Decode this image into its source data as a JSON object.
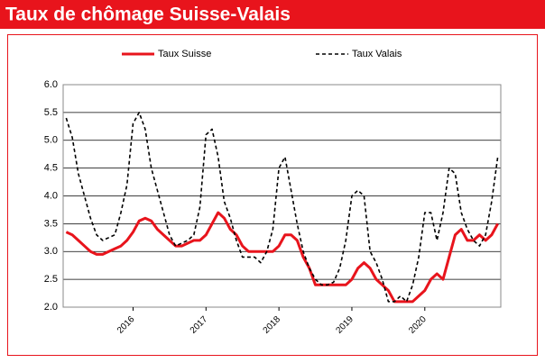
{
  "chart_data": {
    "type": "line",
    "title": "Taux de chômage Suisse-Valais",
    "categories": [
      null,
      null,
      null,
      null,
      null,
      null,
      null,
      null,
      null,
      null,
      null,
      "2016",
      null,
      null,
      null,
      null,
      null,
      null,
      null,
      null,
      null,
      null,
      null,
      "2017",
      null,
      null,
      null,
      null,
      null,
      null,
      null,
      null,
      null,
      null,
      null,
      "2018",
      null,
      null,
      null,
      null,
      null,
      null,
      null,
      null,
      null,
      null,
      null,
      "2019",
      null,
      null,
      null,
      null,
      null,
      null,
      null,
      null,
      null,
      null,
      null,
      "2020",
      null,
      null,
      null,
      null,
      null,
      null,
      null,
      null,
      null,
      null,
      null,
      null
    ],
    "series": [
      {
        "name": "Taux Suisse",
        "color": "#e8141c",
        "dash": false,
        "values": [
          3.35,
          3.3,
          3.2,
          3.1,
          3.0,
          2.95,
          2.95,
          3.0,
          3.05,
          3.1,
          3.2,
          3.35,
          3.55,
          3.6,
          3.55,
          3.4,
          3.3,
          3.2,
          3.1,
          3.1,
          3.15,
          3.2,
          3.2,
          3.3,
          3.5,
          3.7,
          3.6,
          3.4,
          3.3,
          3.1,
          3.0,
          3.0,
          3.0,
          3.0,
          3.0,
          3.1,
          3.3,
          3.3,
          3.2,
          2.9,
          2.7,
          2.4,
          2.4,
          2.4,
          2.4,
          2.4,
          2.4,
          2.5,
          2.7,
          2.8,
          2.7,
          2.5,
          2.4,
          2.3,
          2.1,
          2.1,
          2.1,
          2.1,
          2.2,
          2.3,
          2.5,
          2.6,
          2.5,
          2.9,
          3.3,
          3.4,
          3.2,
          3.2,
          3.3,
          3.2,
          3.3,
          3.5
        ]
      },
      {
        "name": "Taux Valais",
        "color": "#000000",
        "dash": true,
        "values": [
          5.4,
          5.05,
          4.4,
          4.0,
          3.6,
          3.3,
          3.2,
          3.25,
          3.3,
          3.7,
          4.2,
          5.3,
          5.5,
          5.2,
          4.5,
          4.1,
          3.7,
          3.3,
          3.1,
          3.15,
          3.2,
          3.3,
          3.8,
          5.1,
          5.2,
          4.7,
          3.9,
          3.6,
          3.2,
          2.9,
          2.9,
          2.9,
          2.8,
          3.0,
          3.4,
          4.5,
          4.7,
          4.1,
          3.5,
          3.0,
          2.7,
          2.5,
          2.4,
          2.4,
          2.45,
          2.7,
          3.2,
          4.0,
          4.1,
          4.0,
          3.0,
          2.8,
          2.5,
          2.1,
          2.1,
          2.2,
          2.1,
          2.4,
          2.9,
          3.7,
          3.7,
          3.2,
          3.7,
          4.5,
          4.4,
          3.7,
          3.4,
          3.2,
          3.1,
          3.3,
          3.9,
          4.7
        ]
      }
    ],
    "ylim": [
      2,
      6
    ],
    "yticks": [
      {
        "value": 2,
        "label": "2.0"
      },
      {
        "value": 2.5,
        "label": "2.5"
      },
      {
        "value": 3,
        "label": "3.0"
      },
      {
        "value": 3.5,
        "label": "3.5"
      },
      {
        "value": 4,
        "label": "4.0"
      },
      {
        "value": 4.5,
        "label": "4.5"
      },
      {
        "value": 5,
        "label": "5.0"
      },
      {
        "value": 5.5,
        "label": "5.5"
      },
      {
        "value": 6,
        "label": "6.0"
      }
    ],
    "grid": true
  }
}
